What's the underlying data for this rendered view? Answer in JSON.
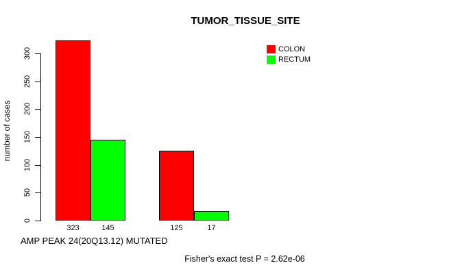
{
  "chart_data": {
    "type": "bar",
    "title": "TUMOR_TISSUE_SITE",
    "ylabel": "number of cases",
    "xlabel": "AMP PEAK 24(20Q13.12) MUTATED",
    "annotation": "Fisher's exact test P = 2.62e-06",
    "ylim": [
      0,
      300
    ],
    "yticks": [
      0,
      50,
      100,
      150,
      200,
      250,
      300
    ],
    "grid": false,
    "legend_position": "top-right",
    "series": [
      {
        "name": "COLON",
        "color": "#ff0000"
      },
      {
        "name": "RECTUM",
        "color": "#00ff00"
      }
    ],
    "groups": [
      {
        "values": [
          323,
          145
        ]
      },
      {
        "values": [
          125,
          17
        ]
      }
    ],
    "bar_labels": [
      "323",
      "145",
      "125",
      "17"
    ]
  }
}
